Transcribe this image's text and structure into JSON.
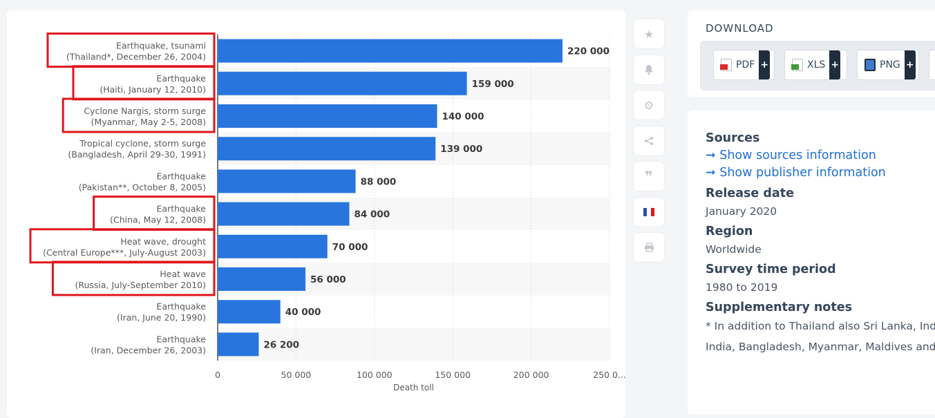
{
  "chart_data": {
    "type": "bar",
    "orientation": "horizontal",
    "categories": [
      [
        "Earthquake, tsunami",
        "(Thailand*, December 26, 2004)"
      ],
      [
        "Earthquake",
        "(Haiti, January 12, 2010)"
      ],
      [
        "Cyclone Nargis, storm surge",
        "(Myanmar, May 2-5, 2008)"
      ],
      [
        "Tropical cyclone, storm surge",
        "(Bangladesh, April 29-30, 1991)"
      ],
      [
        "Earthquake",
        "(Pakistan**, October 8, 2005)"
      ],
      [
        "Earthquake",
        "(China, May 12, 2008)"
      ],
      [
        "Heat wave, drought",
        "(Central Europe***, July-August 2003)"
      ],
      [
        "Heat wave",
        "(Russia, July-September 2010)"
      ],
      [
        "Earthquake",
        "(Iran, June 20, 1990)"
      ],
      [
        "Earthquake",
        "(Iran, December 26, 2003)"
      ]
    ],
    "values": [
      220000,
      159000,
      140000,
      139000,
      88000,
      84000,
      70000,
      56000,
      40000,
      26200
    ],
    "value_labels": [
      "220 000",
      "159 000",
      "140 000",
      "139 000",
      "88 000",
      "84 000",
      "70 000",
      "56 000",
      "40 000",
      "26 200"
    ],
    "highlighted_rows": [
      0,
      1,
      2,
      5,
      6,
      7
    ],
    "xlabel": "Death toll",
    "xlim": [
      0,
      250000
    ],
    "xticks": [
      0,
      50000,
      100000,
      150000,
      200000,
      250000
    ],
    "xtick_labels": [
      "0",
      "50 000",
      "100 000",
      "150 000",
      "200 000",
      "250 0..."
    ],
    "grid": true,
    "colors": {
      "bar": "#2876dd",
      "highlight": "#e0161e",
      "stripe": "#f7f7f7",
      "grid": "#e2e2e2",
      "text": "#5a5a5a"
    }
  },
  "toolbar": {
    "icons": [
      "star-icon",
      "bell-icon",
      "gear-icon",
      "share-icon",
      "quote-icon",
      "french-flag-icon",
      "print-icon"
    ]
  },
  "download": {
    "title": "DOWNLOAD",
    "buttons": [
      {
        "label": "PDF",
        "icon": "pdf-icon",
        "color": "#d92b2b"
      },
      {
        "label": "XLS",
        "icon": "xls-icon",
        "color": "#3f9a3b"
      },
      {
        "label": "PNG",
        "icon": "png-icon",
        "color": "#3d7ccc"
      }
    ],
    "plus": "+"
  },
  "info": {
    "sources_title": "Sources",
    "show_sources": "➞ Show sources information",
    "show_publisher": "➞ Show publisher information",
    "release_title": "Release date",
    "release_value": "January 2020",
    "region_title": "Region",
    "region_value": "Worldwide",
    "period_title": "Survey time period",
    "period_value": "1980 to 2019",
    "notes_title": "Supplementary notes",
    "note_line1": "* In addition to Thailand also Sri Lanka, Ind",
    "note_line2": "India, Bangladesh, Myanmar, Maldives and"
  }
}
